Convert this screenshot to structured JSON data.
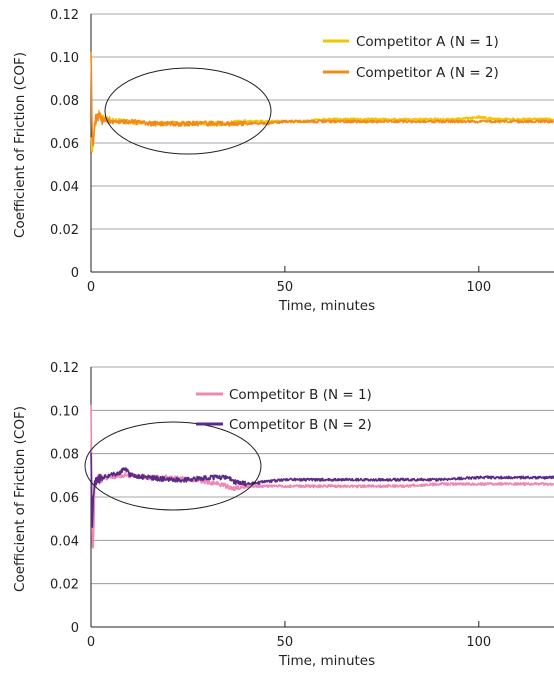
{
  "chart_data": [
    {
      "type": "line",
      "xlabel": "Time, minutes",
      "ylabel": "Coefficient of Friction (COF)",
      "xlim": [
        0,
        120
      ],
      "ylim": [
        0,
        0.12
      ],
      "xticks": [
        "0",
        "50",
        "100"
      ],
      "yticks": [
        "0",
        "0.02",
        "0.04",
        "0.06",
        "0.08",
        "0.10",
        "0.12"
      ],
      "grid": "horizontal",
      "legend_position": "top-right",
      "annotation": "ellipse highlighting run-in period (approx. 4–47 min, COF 0.057–0.085)",
      "series": [
        {
          "name": "Competitor A (N = 1)",
          "color": "#f5c400",
          "x": [
            0,
            0.3,
            0.6,
            1,
            1.5,
            2,
            3,
            5,
            8,
            10,
            15,
            20,
            25,
            30,
            35,
            40,
            45,
            50,
            55,
            60,
            65,
            70,
            75,
            80,
            85,
            90,
            95,
            100,
            105,
            110,
            115,
            120
          ],
          "y": [
            0.065,
            0.055,
            0.06,
            0.068,
            0.072,
            0.074,
            0.072,
            0.071,
            0.07,
            0.07,
            0.069,
            0.069,
            0.069,
            0.069,
            0.069,
            0.07,
            0.07,
            0.07,
            0.07,
            0.071,
            0.071,
            0.071,
            0.071,
            0.071,
            0.071,
            0.071,
            0.071,
            0.072,
            0.071,
            0.071,
            0.071,
            0.071
          ]
        },
        {
          "name": "Competitor A (N = 2)",
          "color": "#f08a1e",
          "x": [
            0,
            0.3,
            0.6,
            1,
            1.5,
            2,
            3,
            5,
            8,
            10,
            15,
            20,
            25,
            30,
            35,
            40,
            45,
            50,
            55,
            60,
            65,
            70,
            75,
            80,
            85,
            90,
            95,
            100,
            105,
            110,
            115,
            120
          ],
          "y": [
            0.105,
            0.062,
            0.058,
            0.07,
            0.073,
            0.072,
            0.071,
            0.07,
            0.07,
            0.07,
            0.069,
            0.069,
            0.069,
            0.069,
            0.069,
            0.069,
            0.069,
            0.07,
            0.07,
            0.07,
            0.07,
            0.07,
            0.07,
            0.07,
            0.07,
            0.07,
            0.07,
            0.07,
            0.07,
            0.07,
            0.07,
            0.07
          ]
        }
      ]
    },
    {
      "type": "line",
      "xlabel": "Time, minutes",
      "ylabel": "Coefficient of Friction (COF)",
      "xlim": [
        0,
        120
      ],
      "ylim": [
        0,
        0.12
      ],
      "xticks": [
        "0",
        "50",
        "100"
      ],
      "yticks": [
        "0",
        "0.02",
        "0.04",
        "0.06",
        "0.08",
        "0.10",
        "0.12"
      ],
      "grid": "horizontal",
      "legend_position": "top-center",
      "annotation": "ellipse highlighting run-in period (approx. 0–44 min, COF 0.056–0.086)",
      "series": [
        {
          "name": "Competitor B (N = 1)",
          "color": "#ef87b5",
          "x": [
            0,
            0.3,
            0.6,
            1,
            1.5,
            2,
            3,
            5,
            8,
            10,
            15,
            20,
            25,
            30,
            33,
            35,
            37,
            40,
            45,
            50,
            60,
            70,
            80,
            90,
            100,
            110,
            120
          ],
          "y": [
            0.105,
            0.035,
            0.04,
            0.065,
            0.068,
            0.068,
            0.069,
            0.069,
            0.07,
            0.07,
            0.069,
            0.069,
            0.068,
            0.067,
            0.066,
            0.065,
            0.064,
            0.065,
            0.065,
            0.065,
            0.065,
            0.065,
            0.065,
            0.066,
            0.066,
            0.066,
            0.066
          ]
        },
        {
          "name": "Competitor B (N = 2)",
          "color": "#5b2a86",
          "x": [
            0,
            0.3,
            0.6,
            1,
            1.5,
            2,
            3,
            5,
            7,
            9,
            10,
            15,
            20,
            25,
            30,
            35,
            37,
            40,
            45,
            50,
            60,
            70,
            80,
            90,
            100,
            110,
            120
          ],
          "y": [
            0.083,
            0.04,
            0.06,
            0.067,
            0.068,
            0.069,
            0.069,
            0.07,
            0.071,
            0.073,
            0.07,
            0.069,
            0.068,
            0.068,
            0.069,
            0.069,
            0.067,
            0.066,
            0.067,
            0.068,
            0.068,
            0.068,
            0.068,
            0.068,
            0.069,
            0.069,
            0.069
          ]
        }
      ]
    }
  ]
}
